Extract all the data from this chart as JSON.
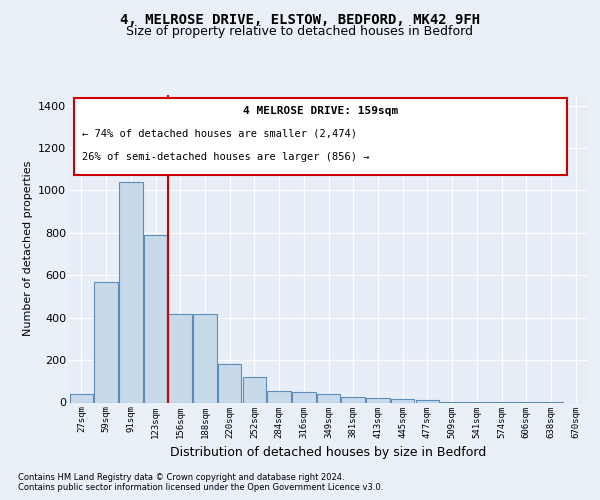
{
  "title1": "4, MELROSE DRIVE, ELSTOW, BEDFORD, MK42 9FH",
  "title2": "Size of property relative to detached houses in Bedford",
  "xlabel": "Distribution of detached houses by size in Bedford",
  "ylabel": "Number of detached properties",
  "categories": [
    "27sqm",
    "59sqm",
    "91sqm",
    "123sqm",
    "156sqm",
    "188sqm",
    "220sqm",
    "252sqm",
    "284sqm",
    "316sqm",
    "349sqm",
    "381sqm",
    "413sqm",
    "445sqm",
    "477sqm",
    "509sqm",
    "541sqm",
    "574sqm",
    "606sqm",
    "638sqm",
    "670sqm"
  ],
  "values": [
    40,
    570,
    1040,
    790,
    415,
    415,
    180,
    120,
    55,
    50,
    40,
    25,
    20,
    18,
    10,
    4,
    3,
    2,
    1,
    1,
    0
  ],
  "bar_color": "#c8d9ea",
  "bar_edge_color": "#5b8db8",
  "ylim": [
    0,
    1450
  ],
  "yticks": [
    0,
    200,
    400,
    600,
    800,
    1000,
    1200,
    1400
  ],
  "red_line_x": 3.5,
  "marker_label": "4 MELROSE DRIVE: 159sqm",
  "marker_pct1": "← 74% of detached houses are smaller (2,474)",
  "marker_pct2": "26% of semi-detached houses are larger (856) →",
  "footnote1": "Contains HM Land Registry data © Crown copyright and database right 2024.",
  "footnote2": "Contains public sector information licensed under the Open Government Licence v3.0.",
  "bg_color": "#eaf0f8",
  "plot_bg_color": "#e8eef8",
  "grid_color": "#ffffff",
  "title1_fontsize": 10,
  "title2_fontsize": 9
}
